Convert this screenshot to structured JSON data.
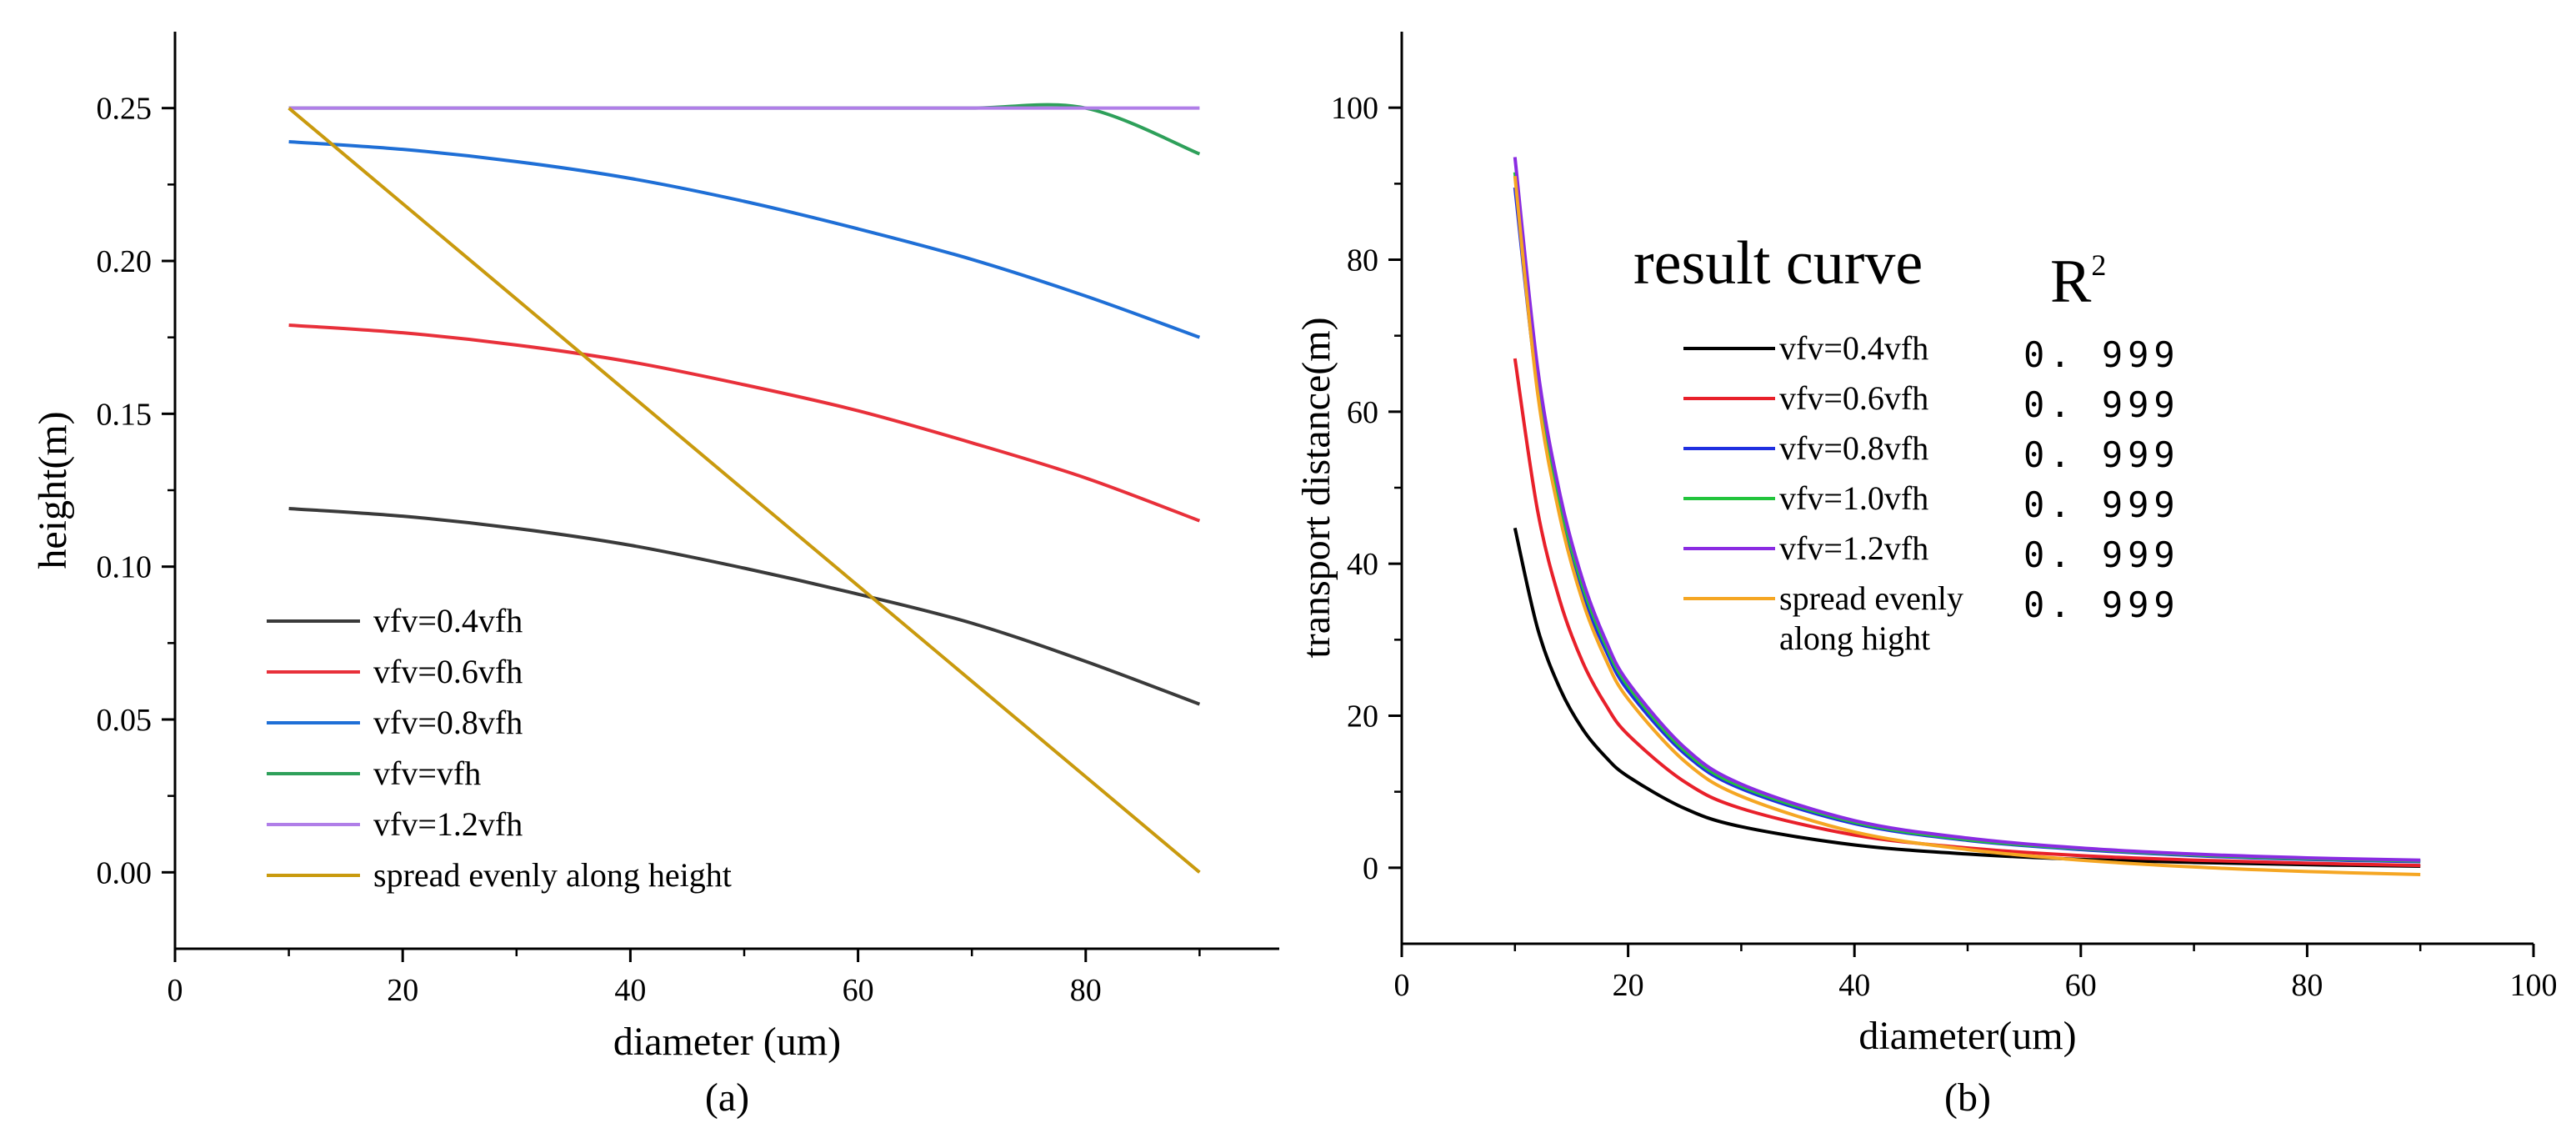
{
  "chart_data": [
    {
      "type": "line",
      "panel_label": "(a)",
      "xlabel": "diameter (um)",
      "ylabel": "height(m)",
      "xlim": [
        0,
        97
      ],
      "ylim": [
        -0.025,
        0.275
      ],
      "xticks": [
        0,
        20,
        40,
        60,
        80
      ],
      "xtick_labels": [
        "0",
        "20",
        "40",
        "60",
        "80"
      ],
      "yticks": [
        0.0,
        0.05,
        0.1,
        0.15,
        0.2,
        0.25
      ],
      "ytick_labels": [
        "0.00",
        "0.05",
        "0.10",
        "0.15",
        "0.20",
        "0.25"
      ],
      "legend_position": "bottom-left",
      "x": [
        10,
        20,
        30,
        40,
        50,
        60,
        70,
        80,
        90
      ],
      "series": [
        {
          "name": "vfv=0.4vfh",
          "color": "#3a3a3a",
          "values": [
            0.119,
            0.1165,
            0.1125,
            0.107,
            0.0995,
            0.091,
            0.0815,
            0.069,
            0.055
          ]
        },
        {
          "name": "vfv=0.6vfh",
          "color": "#e8303a",
          "values": [
            0.179,
            0.1765,
            0.1725,
            0.167,
            0.1595,
            0.151,
            0.1405,
            0.129,
            0.115
          ]
        },
        {
          "name": "vfv=0.8vfh",
          "color": "#1f6fd6",
          "values": [
            0.239,
            0.2365,
            0.2325,
            0.227,
            0.2195,
            0.2105,
            0.2005,
            0.1885,
            0.175
          ]
        },
        {
          "name": "vfv=vfh",
          "color": "#2ea05a",
          "values": [
            0.25,
            0.25,
            0.25,
            0.25,
            0.25,
            0.25,
            0.25,
            0.25,
            0.235
          ]
        },
        {
          "name": "vfv=1.2vfh",
          "color": "#b07ee8",
          "values": [
            0.25,
            0.25,
            0.25,
            0.25,
            0.25,
            0.25,
            0.25,
            0.25,
            0.25
          ]
        },
        {
          "name": "spread evenly along height",
          "color": "#c99a0e",
          "values": [
            0.25,
            0.21875,
            0.1875,
            0.15625,
            0.125,
            0.09375,
            0.0625,
            0.03125,
            0.0
          ]
        }
      ]
    },
    {
      "type": "line",
      "panel_label": "(b)",
      "xlabel": "diameter(um)",
      "ylabel": "transport distance(m)",
      "xlim": [
        0,
        100
      ],
      "ylim": [
        -10,
        110
      ],
      "xticks": [
        0,
        20,
        40,
        60,
        80,
        100
      ],
      "xtick_labels": [
        "0",
        "20",
        "40",
        "60",
        "80",
        "100"
      ],
      "yticks": [
        0,
        20,
        40,
        60,
        80,
        100
      ],
      "ytick_labels": [
        "0",
        "20",
        "40",
        "60",
        "80",
        "100"
      ],
      "legend_position": "top-right",
      "legend_title": "result curve",
      "r2_header_base": "R",
      "r2_header_sup": "2",
      "x": [
        10,
        12,
        14,
        16,
        18,
        20,
        25,
        30,
        40,
        50,
        60,
        70,
        80,
        90
      ],
      "series": [
        {
          "name": "vfv=0.4vfh",
          "label_lines": [
            "vfv=0.4vfh"
          ],
          "color": "#000000",
          "r2": "0. 999",
          "values": [
            44.7,
            31.5,
            23.5,
            18.2,
            14.6,
            12.0,
            7.8,
            5.4,
            3.0,
            1.8,
            1.1,
            0.7,
            0.4,
            0.2
          ]
        },
        {
          "name": "vfv=0.6vfh",
          "label_lines": [
            "vfv=0.6vfh"
          ],
          "color": "#e8202a",
          "r2": "0. 999",
          "values": [
            67.0,
            47.0,
            35.0,
            27.0,
            21.5,
            17.5,
            11.3,
            7.8,
            4.3,
            2.6,
            1.6,
            1.0,
            0.6,
            0.3
          ]
        },
        {
          "name": "vfv=0.8vfh",
          "label_lines": [
            "vfv=0.8vfh"
          ],
          "color": "#1f2fe0",
          "r2": "0. 999",
          "values": [
            89.5,
            63.0,
            47.0,
            36.0,
            28.7,
            23.3,
            15.0,
            10.4,
            5.8,
            3.6,
            2.4,
            1.6,
            1.1,
            0.8
          ]
        },
        {
          "name": "vfv=1.0vfh",
          "label_lines": [
            "vfv=1.0vfh"
          ],
          "color": "#22c43c",
          "r2": "0. 999",
          "values": [
            91.5,
            64.5,
            48.0,
            37.0,
            29.4,
            23.9,
            15.4,
            10.7,
            6.0,
            3.7,
            2.5,
            1.7,
            1.2,
            0.9
          ]
        },
        {
          "name": "vfv=1.2vfh",
          "label_lines": [
            "vfv=1.2vfh"
          ],
          "color": "#8a2be2",
          "r2": "0. 999",
          "values": [
            93.5,
            65.8,
            49.0,
            37.8,
            30.0,
            24.4,
            15.8,
            11.0,
            6.2,
            3.9,
            2.6,
            1.8,
            1.3,
            1.0
          ]
        },
        {
          "name": "spread evenly along hight",
          "label_lines": [
            "spread evenly",
            "along hight"
          ],
          "color": "#f5a623",
          "r2": "0. 999",
          "values": [
            91.0,
            62.5,
            46.0,
            35.0,
            27.5,
            22.2,
            14.0,
            9.4,
            4.7,
            2.4,
            1.0,
            0.1,
            -0.5,
            -0.9
          ]
        }
      ]
    }
  ]
}
